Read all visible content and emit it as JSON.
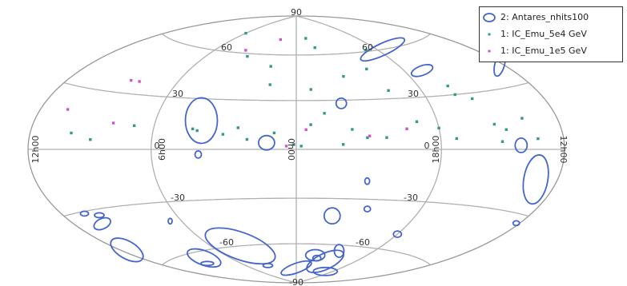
{
  "chart_data": {
    "type": "scatter",
    "projection": "hammer-aitoff",
    "coordinate_system": "equatorial",
    "lat_labels": [
      "90",
      "60",
      "30",
      "0",
      "-30",
      "-60",
      "-90"
    ],
    "lon_labels": [
      "12h00",
      "6h00",
      "0h00",
      "18h00",
      "12h00"
    ],
    "legend": [
      {
        "label": "2: Antares_nhits100",
        "color": "#4466cc",
        "marker": "ellipse"
      },
      {
        "label": "1: IC_Emu_5e4 GeV",
        "color": "#339988",
        "marker": "dot"
      },
      {
        "label": "1: IC_Emu_1e5 GeV",
        "color": "#cc55cc",
        "marker": "dot"
      }
    ],
    "series": [
      {
        "name": "2: Antares_nhits100",
        "color": "#4466cc",
        "ellipses": [
          {
            "ra_h": 17.6,
            "dec": 60,
            "w": 60,
            "h": 15,
            "rot": -25
          },
          {
            "ra_h": 17.0,
            "dec": 45,
            "w": 28,
            "h": 12,
            "rot": -20
          },
          {
            "ra_h": 12.2,
            "dec": 40,
            "w": 12,
            "h": 30,
            "rot": 15
          },
          {
            "ra_h": 4.0,
            "dec": 17,
            "w": 40,
            "h": 57,
            "rot": 0
          },
          {
            "ra_h": 4.0,
            "dec": -3,
            "w": 8,
            "h": 9,
            "rot": 0
          },
          {
            "ra_h": 1.2,
            "dec": 4,
            "w": 20,
            "h": 18,
            "rot": 0
          },
          {
            "ra_h": 22.0,
            "dec": 28,
            "w": 13,
            "h": 13,
            "rot": 0
          },
          {
            "ra_h": 14.3,
            "dec": 2,
            "w": 15,
            "h": 18,
            "rot": 0
          },
          {
            "ra_h": 13.2,
            "dec": -14,
            "w": 30,
            "h": 62,
            "rot": 10
          },
          {
            "ra_h": 21.0,
            "dec": -19,
            "w": 6,
            "h": 8,
            "rot": 0
          },
          {
            "ra_h": 10.7,
            "dec": -31,
            "w": 10,
            "h": 6,
            "rot": 0
          },
          {
            "ra_h": 12.2,
            "dec": -34,
            "w": 8,
            "h": 6,
            "rot": 0
          },
          {
            "ra_h": 22.2,
            "dec": -41,
            "w": 20,
            "h": 20,
            "rot": 0
          },
          {
            "ra_h": 20.6,
            "dec": -36,
            "w": 8,
            "h": 7,
            "rot": 0
          },
          {
            "ra_h": 10.4,
            "dec": -37,
            "w": 22,
            "h": 13,
            "rot": -25
          },
          {
            "ra_h": 18.0,
            "dec": -50,
            "w": 10,
            "h": 8,
            "rot": 0
          },
          {
            "ra_h": 11.6,
            "dec": -50,
            "w": 45,
            "h": 22,
            "rot": 30
          },
          {
            "ra_h": 10.0,
            "dec": -33,
            "w": 12,
            "h": 6,
            "rot": 0
          },
          {
            "ra_h": 6.6,
            "dec": -41,
            "w": 5,
            "h": 7,
            "rot": 0
          },
          {
            "ra_h": 4.0,
            "dec": -60,
            "w": 92,
            "h": 34,
            "rot": 20
          },
          {
            "ra_h": 8.0,
            "dec": -64,
            "w": 44,
            "h": 18,
            "rot": 20
          },
          {
            "ra_h": 8.8,
            "dec": -67,
            "w": 16,
            "h": 5,
            "rot": 0
          },
          {
            "ra_h": 20.6,
            "dec": -64,
            "w": 12,
            "h": 16,
            "rot": 0
          },
          {
            "ra_h": 22.3,
            "dec": -68,
            "w": 24,
            "h": 14,
            "rot": 0
          },
          {
            "ra_h": 22.0,
            "dec": -70,
            "w": 10,
            "h": 7,
            "rot": 0
          },
          {
            "ra_h": 0.0,
            "dec": -78,
            "w": 40,
            "h": 12,
            "rot": -20
          },
          {
            "ra_h": 20.9,
            "dec": -72,
            "w": 50,
            "h": 20,
            "rot": -25
          },
          {
            "ra_h": 3.6,
            "dec": -75,
            "w": 12,
            "h": 5,
            "rot": 0
          },
          {
            "ra_h": 19.0,
            "dec": -79,
            "w": 30,
            "h": 10,
            "rot": 0
          }
        ]
      },
      {
        "name": "1: IC_Emu_5e4 GeV",
        "color": "#339988",
        "points": [
          [
            6.0,
            73
          ],
          [
            23.0,
            72
          ],
          [
            22.5,
            65
          ],
          [
            18.8,
            61
          ],
          [
            3.3,
            58
          ],
          [
            1.5,
            52
          ],
          [
            20.0,
            49
          ],
          [
            21.5,
            45
          ],
          [
            1.3,
            40
          ],
          [
            23.3,
            37
          ],
          [
            19.6,
            35
          ],
          [
            16.5,
            30
          ],
          [
            15.8,
            27
          ],
          [
            13.9,
            15
          ],
          [
            6.9,
            13
          ],
          [
            4.3,
            12
          ],
          [
            2.4,
            13
          ],
          [
            0.9,
            10
          ],
          [
            22.8,
            22
          ],
          [
            23.4,
            15
          ],
          [
            21.7,
            12
          ],
          [
            18.9,
            16
          ],
          [
            18.0,
            12
          ],
          [
            15.4,
            13
          ],
          [
            14.9,
            10
          ],
          [
            16.5,
            35
          ],
          [
            9.8,
            8
          ],
          [
            8.8,
            5
          ],
          [
            4.1,
            11
          ],
          [
            3.0,
            9
          ],
          [
            2.0,
            6
          ],
          [
            0.1,
            3
          ],
          [
            23.8,
            2
          ],
          [
            22.1,
            3
          ],
          [
            21.1,
            7
          ],
          [
            20.3,
            7
          ],
          [
            17.3,
            6
          ],
          [
            15.2,
            4
          ],
          [
            13.4,
            5
          ]
        ]
      },
      {
        "name": "1: IC_Emu_1e5 GeV",
        "color": "#cc55cc",
        "points": [
          [
            1.6,
            71
          ],
          [
            3.8,
            62
          ],
          [
            8.5,
            37
          ],
          [
            8.0,
            37
          ],
          [
            10.5,
            19
          ],
          [
            7.9,
            14
          ],
          [
            23.6,
            12
          ],
          [
            19.4,
            12
          ],
          [
            0.4,
            2
          ],
          [
            21.0,
            8
          ]
        ]
      }
    ]
  }
}
